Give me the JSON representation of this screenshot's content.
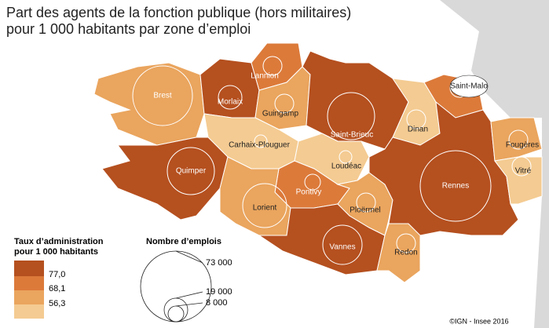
{
  "title": [
    "Part des agents de la fonction publique (hors militaires)",
    "pour 1 000 habitants par zone d’emploi"
  ],
  "zones": [
    {
      "label": "Brest"
    },
    {
      "label": "Morlaix"
    },
    {
      "label": "Lannion"
    },
    {
      "label": "Guingamp"
    },
    {
      "label": "Saint-Brieuc"
    },
    {
      "label": "Carhaix-Plouguer"
    },
    {
      "label": "Quimper"
    },
    {
      "label": "Loudéac"
    },
    {
      "label": "Pontivy"
    },
    {
      "label": "Lorient"
    },
    {
      "label": "Vannes"
    },
    {
      "label": "Ploërmel"
    },
    {
      "label": "Redon"
    },
    {
      "label": "Dinan"
    },
    {
      "label": "Saint-Malo"
    },
    {
      "label": "Rennes"
    },
    {
      "label": "Fougères"
    },
    {
      "label": "Vitré"
    }
  ],
  "legend_color": {
    "title": [
      "Taux d’administration",
      "pour 1 000 habitants"
    ],
    "thresholds": [
      "77,0",
      "68,1",
      "56,3"
    ]
  },
  "legend_size": {
    "title": "Nombre d’emplois",
    "labels": [
      "73 000",
      "19 000",
      "8 000"
    ]
  },
  "credit": "©IGN - Insee 2016"
}
